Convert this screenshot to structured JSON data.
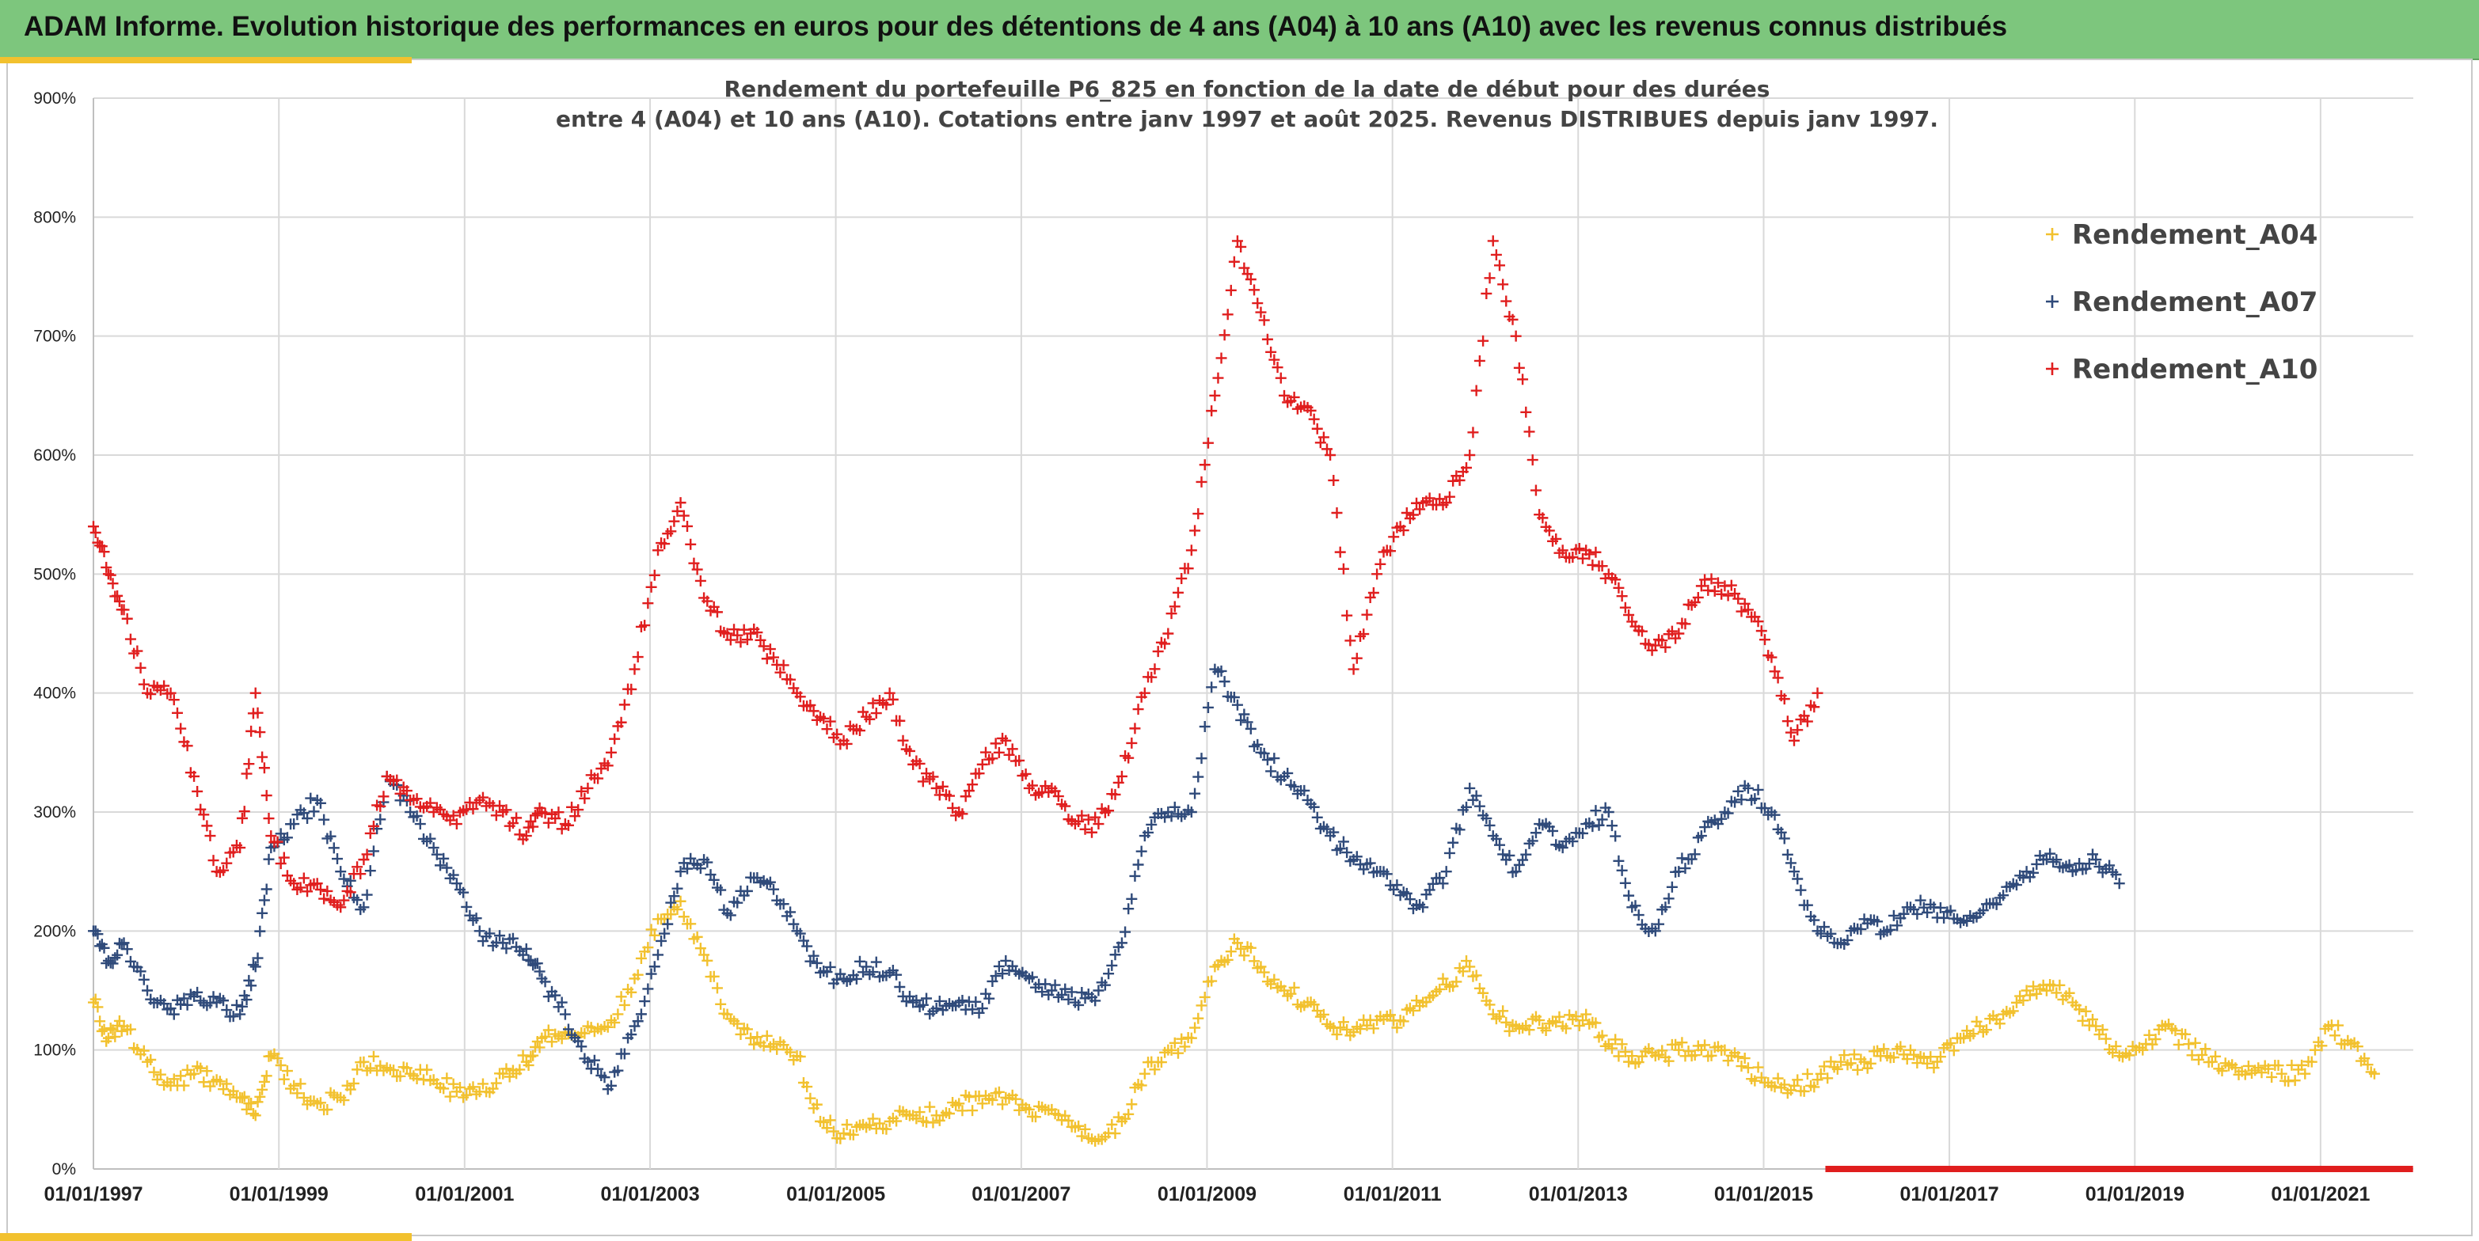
{
  "banner": {
    "title": "ADAM Informe. Evolution historique des performances en euros pour des détentions de 4 ans (A04) à 10 ans (A10) avec les revenus connus distribués"
  },
  "colors": {
    "banner": "#7dc67d",
    "accent_corner": "#f2c12e",
    "A04": "#f2c12e",
    "A07": "#2f4a7a",
    "A10": "#e01e1e"
  },
  "chart_data": {
    "type": "scatter",
    "title_line1": "Rendement du portefeuille P6_825 en fonction de la date de début pour des durées",
    "title_line2": "entre 4 (A04) et 10 ans (A10). Cotations entre janv 1997 et août 2025. Revenus DISTRIBUES depuis janv 1997.",
    "marker": "+",
    "grid": true,
    "legend_position": "top-right",
    "xlim": [
      "1997-01-01",
      "2022-01-01"
    ],
    "ylim": [
      0,
      900
    ],
    "y_ticks": [
      0,
      100,
      200,
      300,
      400,
      500,
      600,
      700,
      800,
      900
    ],
    "y_tick_labels": [
      "0%",
      "100%",
      "200%",
      "300%",
      "400%",
      "500%",
      "600%",
      "700%",
      "800%",
      "900%"
    ],
    "x_ticks": [
      "1997-01-01",
      "1999-01-01",
      "2001-01-01",
      "2003-01-01",
      "2005-01-01",
      "2007-01-01",
      "2009-01-01",
      "2011-01-01",
      "2013-01-01",
      "2015-01-01",
      "2017-01-01",
      "2019-01-01",
      "2021-01-01"
    ],
    "x_tick_labels": [
      "01/01/1997",
      "01/01/1999",
      "01/01/2001",
      "01/01/2003",
      "01/01/2005",
      "01/01/2007",
      "01/01/2009",
      "01/01/2011",
      "01/01/2013",
      "01/01/2015",
      "01/01/2017",
      "01/01/2019",
      "01/01/2021"
    ],
    "series": [
      {
        "name": "Rendement_A04",
        "color": "#f2c12e",
        "x": [
          "1997-01-01",
          "1997-03-01",
          "1997-05-01",
          "1997-08-01",
          "1997-11-01",
          "1998-02-01",
          "1998-05-01",
          "1998-08-01",
          "1998-10-01",
          "1998-12-01",
          "1999-03-01",
          "1999-06-01",
          "1999-09-01",
          "1999-12-01",
          "2000-03-01",
          "2000-06-01",
          "2000-09-01",
          "2000-12-01",
          "2001-03-01",
          "2001-06-01",
          "2001-09-01",
          "2001-11-01",
          "2002-02-01",
          "2002-05-01",
          "2002-08-01",
          "2002-11-01",
          "2003-02-01",
          "2003-05-01",
          "2003-08-01",
          "2003-11-01",
          "2004-02-01",
          "2004-05-01",
          "2004-08-01",
          "2004-11-01",
          "2005-02-01",
          "2005-05-01",
          "2005-08-01",
          "2005-11-01",
          "2006-02-01",
          "2006-05-01",
          "2006-08-01",
          "2006-11-01",
          "2007-02-01",
          "2007-05-01",
          "2007-08-01",
          "2007-11-01",
          "2008-02-01",
          "2008-05-01",
          "2008-08-01",
          "2008-11-01",
          "2009-02-01",
          "2009-05-01",
          "2009-08-01",
          "2009-11-01",
          "2010-02-01",
          "2010-05-01",
          "2010-08-01",
          "2010-11-01",
          "2011-02-01",
          "2011-05-01",
          "2011-08-01",
          "2011-11-01",
          "2012-02-01",
          "2012-05-01",
          "2012-08-01",
          "2012-11-01",
          "2013-02-01",
          "2013-05-01",
          "2013-08-01",
          "2013-11-01",
          "2014-02-01",
          "2014-05-01",
          "2014-08-01",
          "2014-11-01",
          "2015-02-01",
          "2015-05-01",
          "2015-08-01",
          "2015-11-01",
          "2016-02-01",
          "2016-05-01",
          "2016-08-01",
          "2016-11-01",
          "2017-02-01",
          "2017-05-01",
          "2017-08-01",
          "2017-11-01",
          "2018-02-01",
          "2018-05-01",
          "2018-08-01",
          "2018-11-01",
          "2019-02-01",
          "2019-05-01",
          "2019-08-01",
          "2019-11-01",
          "2020-02-01",
          "2020-05-01",
          "2020-08-01",
          "2020-11-01",
          "2021-02-01",
          "2021-05-01",
          "2021-08-01"
        ],
        "y": [
          140,
          110,
          120,
          90,
          70,
          80,
          75,
          60,
          45,
          95,
          70,
          55,
          60,
          90,
          85,
          80,
          75,
          65,
          65,
          80,
          90,
          110,
          115,
          120,
          125,
          160,
          210,
          225,
          180,
          130,
          110,
          105,
          95,
          40,
          30,
          35,
          40,
          45,
          45,
          55,
          55,
          60,
          50,
          50,
          35,
          25,
          40,
          80,
          100,
          110,
          170,
          190,
          170,
          150,
          140,
          120,
          115,
          125,
          125,
          140,
          155,
          170,
          130,
          120,
          125,
          120,
          130,
          105,
          95,
          95,
          100,
          100,
          100,
          85,
          70,
          70,
          75,
          90,
          90,
          95,
          100,
          85,
          110,
          120,
          130,
          150,
          155,
          140,
          120,
          95,
          100,
          120,
          105,
          90,
          85,
          85,
          80,
          80,
          120,
          105,
          80
        ]
      },
      {
        "name": "Rendement_A07",
        "color": "#2f4a7a",
        "x": [
          "1997-01-01",
          "1997-03-01",
          "1997-05-01",
          "1997-08-01",
          "1997-11-01",
          "1998-02-01",
          "1998-05-01",
          "1998-08-01",
          "1998-10-01",
          "1998-12-01",
          "1999-03-01",
          "1999-06-01",
          "1999-09-01",
          "1999-12-01",
          "2000-03-01",
          "2000-06-01",
          "2000-09-01",
          "2000-12-01",
          "2001-03-01",
          "2001-06-01",
          "2001-09-01",
          "2001-11-01",
          "2002-02-01",
          "2002-05-01",
          "2002-08-01",
          "2002-11-01",
          "2003-02-01",
          "2003-05-01",
          "2003-08-01",
          "2003-11-01",
          "2004-02-01",
          "2004-05-01",
          "2004-08-01",
          "2004-11-01",
          "2005-02-01",
          "2005-05-01",
          "2005-08-01",
          "2005-11-01",
          "2006-02-01",
          "2006-05-01",
          "2006-08-01",
          "2006-11-01",
          "2007-02-01",
          "2007-05-01",
          "2007-08-01",
          "2007-11-01",
          "2008-02-01",
          "2008-05-01",
          "2008-08-01",
          "2008-11-01",
          "2009-02-01",
          "2009-05-01",
          "2009-08-01",
          "2009-11-01",
          "2010-02-01",
          "2010-05-01",
          "2010-08-01",
          "2010-11-01",
          "2011-02-01",
          "2011-05-01",
          "2011-08-01",
          "2011-11-01",
          "2012-02-01",
          "2012-05-01",
          "2012-08-01",
          "2012-11-01",
          "2013-02-01",
          "2013-05-01",
          "2013-08-01",
          "2013-11-01",
          "2014-02-01",
          "2014-05-01",
          "2014-08-01",
          "2014-11-01",
          "2015-02-01",
          "2015-05-01",
          "2015-08-01",
          "2015-11-01",
          "2016-02-01",
          "2016-05-01",
          "2016-08-01",
          "2016-11-01",
          "2017-02-01",
          "2017-05-01",
          "2017-08-01",
          "2017-11-01",
          "2018-02-01",
          "2018-05-01",
          "2018-08-01",
          "2018-11-01"
        ],
        "y": [
          200,
          175,
          190,
          150,
          135,
          145,
          140,
          130,
          170,
          270,
          290,
          310,
          250,
          220,
          330,
          300,
          270,
          240,
          200,
          190,
          185,
          160,
          130,
          90,
          70,
          120,
          180,
          250,
          260,
          215,
          245,
          235,
          200,
          165,
          160,
          170,
          165,
          140,
          135,
          140,
          135,
          175,
          160,
          150,
          140,
          150,
          190,
          280,
          300,
          300,
          420,
          390,
          350,
          330,
          310,
          280,
          260,
          250,
          230,
          220,
          250,
          320,
          280,
          250,
          290,
          270,
          290,
          300,
          220,
          200,
          250,
          280,
          300,
          320,
          300,
          250,
          200,
          190,
          210,
          200,
          220,
          220,
          210,
          215,
          230,
          250,
          265,
          250,
          260,
          240
        ]
      },
      {
        "name": "Rendement_A10",
        "color": "#e01e1e",
        "x": [
          "1997-01-01",
          "1997-03-01",
          "1997-05-01",
          "1997-08-01",
          "1997-11-01",
          "1998-02-01",
          "1998-05-01",
          "1998-08-01",
          "1998-10-01",
          "1998-12-01",
          "1999-03-01",
          "1999-06-01",
          "1999-09-01",
          "1999-12-01",
          "2000-03-01",
          "2000-06-01",
          "2000-09-01",
          "2000-12-01",
          "2001-03-01",
          "2001-06-01",
          "2001-09-01",
          "2001-11-01",
          "2002-02-01",
          "2002-05-01",
          "2002-08-01",
          "2002-11-01",
          "2003-02-01",
          "2003-05-01",
          "2003-08-01",
          "2003-11-01",
          "2004-02-01",
          "2004-05-01",
          "2004-08-01",
          "2004-11-01",
          "2005-02-01",
          "2005-05-01",
          "2005-08-01",
          "2005-11-01",
          "2006-02-01",
          "2006-05-01",
          "2006-08-01",
          "2006-11-01",
          "2007-02-01",
          "2007-05-01",
          "2007-08-01",
          "2007-11-01",
          "2008-02-01",
          "2008-05-01",
          "2008-08-01",
          "2008-11-01",
          "2009-02-01",
          "2009-05-01",
          "2009-08-01",
          "2009-11-01",
          "2010-02-01",
          "2010-05-01",
          "2010-08-01",
          "2010-11-01",
          "2011-02-01",
          "2011-05-01",
          "2011-08-01",
          "2011-11-01",
          "2012-02-01",
          "2012-05-01",
          "2012-08-01",
          "2012-11-01",
          "2013-02-01",
          "2013-05-01",
          "2013-08-01",
          "2013-11-01",
          "2014-02-01",
          "2014-05-01",
          "2014-08-01",
          "2014-11-01",
          "2015-02-01",
          "2015-05-01",
          "2015-08-01"
        ],
        "y": [
          540,
          500,
          470,
          400,
          400,
          330,
          250,
          270,
          400,
          280,
          240,
          240,
          220,
          260,
          330,
          310,
          300,
          290,
          310,
          300,
          280,
          300,
          290,
          320,
          350,
          420,
          520,
          560,
          480,
          450,
          450,
          430,
          400,
          380,
          360,
          380,
          400,
          340,
          320,
          300,
          340,
          360,
          320,
          320,
          290,
          290,
          330,
          400,
          450,
          520,
          650,
          780,
          720,
          650,
          640,
          600,
          420,
          500,
          540,
          560,
          560,
          600,
          780,
          700,
          550,
          520,
          520,
          500,
          460,
          440,
          450,
          490,
          490,
          470,
          430,
          360,
          400
        ]
      },
      {
        "name": "",
        "color": "#e01e1e",
        "x": [
          "2015-09-01",
          "2021-12-31"
        ],
        "y": [
          0,
          0
        ],
        "style": "flat-line"
      }
    ]
  }
}
